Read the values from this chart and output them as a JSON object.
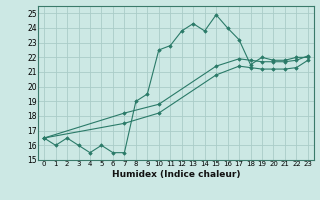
{
  "xlabel": "Humidex (Indice chaleur)",
  "bg_color": "#cce8e4",
  "line_color": "#2a7a68",
  "grid_color": "#aaccc8",
  "xlim": [
    -0.5,
    23.5
  ],
  "ylim": [
    15,
    25.5
  ],
  "yticks": [
    15,
    16,
    17,
    18,
    19,
    20,
    21,
    22,
    23,
    24,
    25
  ],
  "xticks": [
    0,
    1,
    2,
    3,
    4,
    5,
    6,
    7,
    8,
    9,
    10,
    11,
    12,
    13,
    14,
    15,
    16,
    17,
    18,
    19,
    20,
    21,
    22,
    23
  ],
  "lines": [
    {
      "x": [
        0,
        1,
        2,
        3,
        4,
        5,
        6,
        7,
        8,
        9,
        10,
        11,
        12,
        13,
        14,
        15,
        16,
        17,
        18,
        19,
        20,
        21,
        22,
        23
      ],
      "y": [
        16.5,
        16.0,
        16.5,
        16.0,
        15.5,
        16.0,
        15.5,
        15.5,
        19.0,
        19.5,
        22.5,
        22.8,
        23.8,
        24.3,
        23.8,
        24.9,
        24.0,
        23.2,
        21.5,
        22.0,
        21.8,
        21.8,
        22.0,
        22.0
      ]
    },
    {
      "x": [
        0,
        7,
        10,
        15,
        17,
        18,
        19,
        20,
        21,
        22,
        23
      ],
      "y": [
        16.5,
        17.5,
        18.2,
        20.8,
        21.4,
        21.3,
        21.2,
        21.2,
        21.2,
        21.3,
        21.8
      ]
    },
    {
      "x": [
        0,
        7,
        10,
        15,
        17,
        18,
        19,
        20,
        21,
        22,
        23
      ],
      "y": [
        16.5,
        18.2,
        18.8,
        21.4,
        21.9,
        21.8,
        21.7,
        21.7,
        21.7,
        21.8,
        22.1
      ]
    }
  ]
}
